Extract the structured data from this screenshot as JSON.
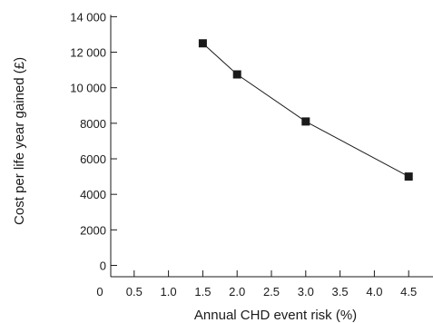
{
  "chart_data": {
    "type": "line",
    "xlabel": "Annual CHD event risk (%)",
    "ylabel": "Cost per life year gained (£)",
    "xlim": [
      0,
      4.75
    ],
    "ylim": [
      -500,
      14000
    ],
    "x_ticks": [
      0,
      0.5,
      1.0,
      1.5,
      2.0,
      2.5,
      3.0,
      3.5,
      4.0,
      4.5
    ],
    "x_tick_labels": [
      "0",
      "0.5",
      "1.0",
      "1.5",
      "2.0",
      "2.5",
      "3.0",
      "3.5",
      "4.0",
      "4.5"
    ],
    "y_ticks": [
      0,
      2000,
      4000,
      6000,
      8000,
      10000,
      12000,
      14000
    ],
    "y_tick_labels": [
      "0",
      "2000",
      "4000",
      "6000",
      "8000",
      "10 000",
      "12 000",
      "14 000"
    ],
    "grid": false,
    "marker": "square",
    "series": [
      {
        "x": [
          1.5,
          2.0,
          3.0,
          4.5
        ],
        "y": [
          12500,
          10750,
          8100,
          5000
        ]
      }
    ]
  }
}
